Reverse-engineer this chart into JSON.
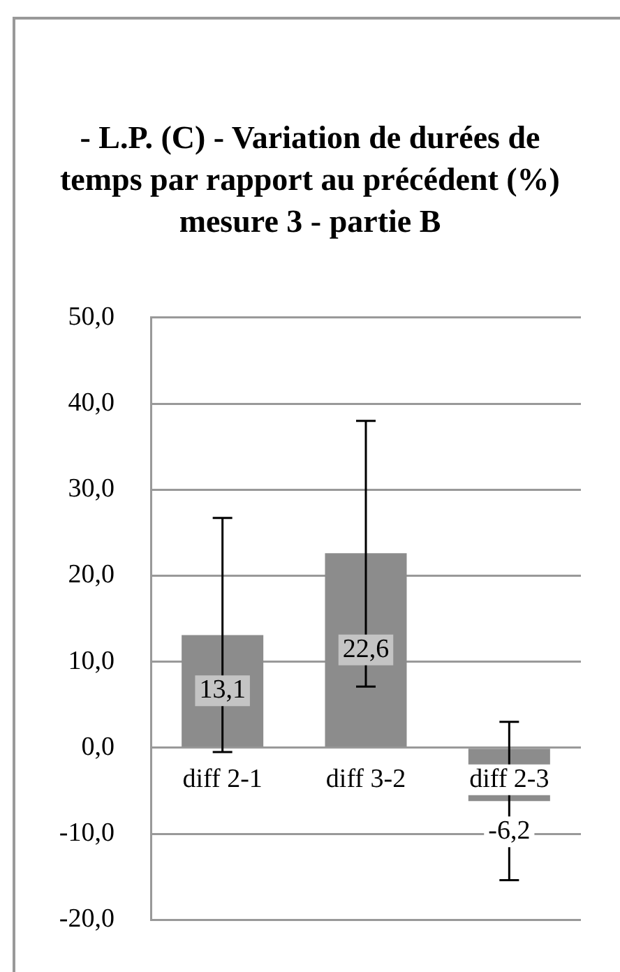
{
  "chart_data": {
    "type": "bar",
    "title": "- L.P. (C) - Variation de durées de temps par rapport au précédent (%) mesure 3 - partie B",
    "categories": [
      "diff 2-1",
      "diff 3-2",
      "diff 2-3"
    ],
    "values": [
      13.1,
      22.6,
      -6.2
    ],
    "color": "#8c8c8c",
    "errors": [
      [
        -0.5,
        26.7
      ],
      [
        7.1,
        38.0
      ],
      [
        -15.4,
        3.0
      ]
    ],
    "value_labels": [
      "13,1",
      "22,6",
      "-6,2"
    ],
    "ylim": [
      -20,
      50
    ],
    "yticks": [
      {
        "value": -20,
        "label": "-20,0"
      },
      {
        "value": -10,
        "label": "-10,0"
      },
      {
        "value": 0,
        "label": "0,0"
      },
      {
        "value": 10,
        "label": "10,0"
      },
      {
        "value": 20,
        "label": "20,0"
      },
      {
        "value": 30,
        "label": "30,0"
      },
      {
        "value": 40,
        "label": "40,0"
      },
      {
        "value": 50,
        "label": "50,0"
      }
    ],
    "grid": "y",
    "legend": false
  }
}
